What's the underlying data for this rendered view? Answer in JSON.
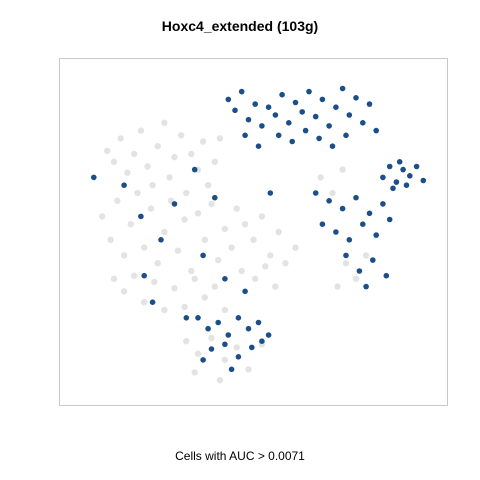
{
  "chart_data": {
    "type": "scatter",
    "title": "Hoxc4_extended (103g)",
    "caption": "Cells with AUC > 0.0071",
    "xlabel": "",
    "ylabel": "",
    "axes_visible": false,
    "grid": false,
    "colors": {
      "background_cells": "#dcdcdc",
      "active_cells": "#1c4f8a"
    },
    "series": [
      {
        "role": "background",
        "points": [
          [
            -0.82,
            0.52
          ],
          [
            -0.78,
            0.45
          ],
          [
            -0.74,
            0.6
          ],
          [
            -0.7,
            0.38
          ],
          [
            -0.66,
            0.5
          ],
          [
            -0.62,
            0.65
          ],
          [
            -0.58,
            0.42
          ],
          [
            -0.55,
            0.3
          ],
          [
            -0.52,
            0.55
          ],
          [
            -0.48,
            0.7
          ],
          [
            -0.45,
            0.35
          ],
          [
            -0.42,
            0.48
          ],
          [
            -0.38,
            0.62
          ],
          [
            -0.35,
            0.25
          ],
          [
            -0.32,
            0.5
          ],
          [
            -0.28,
            0.4
          ],
          [
            -0.25,
            0.58
          ],
          [
            -0.22,
            0.3
          ],
          [
            -0.18,
            0.45
          ],
          [
            -0.15,
            0.6
          ],
          [
            -0.85,
            0.1
          ],
          [
            -0.8,
            -0.05
          ],
          [
            -0.76,
            0.2
          ],
          [
            -0.72,
            -0.15
          ],
          [
            -0.68,
            0.05
          ],
          [
            -0.64,
            0.25
          ],
          [
            -0.6,
            -0.1
          ],
          [
            -0.56,
            0.15
          ],
          [
            -0.52,
            -0.2
          ],
          [
            -0.48,
            0.0
          ],
          [
            -0.44,
            0.2
          ],
          [
            -0.4,
            -0.12
          ],
          [
            -0.36,
            0.08
          ],
          [
            -0.32,
            -0.25
          ],
          [
            -0.28,
            0.12
          ],
          [
            -0.24,
            -0.05
          ],
          [
            -0.2,
            0.18
          ],
          [
            -0.16,
            -0.18
          ],
          [
            -0.12,
            0.02
          ],
          [
            -0.08,
            -0.1
          ],
          [
            -0.78,
            -0.3
          ],
          [
            -0.72,
            -0.38
          ],
          [
            -0.66,
            -0.28
          ],
          [
            -0.6,
            -0.45
          ],
          [
            -0.54,
            -0.32
          ],
          [
            -0.48,
            -0.5
          ],
          [
            -0.42,
            -0.36
          ],
          [
            -0.36,
            -0.48
          ],
          [
            -0.3,
            -0.3
          ],
          [
            -0.24,
            -0.42
          ],
          [
            -0.18,
            -0.35
          ],
          [
            -0.12,
            -0.5
          ],
          [
            -0.05,
            0.15
          ],
          [
            0.0,
            0.05
          ],
          [
            0.05,
            -0.05
          ],
          [
            0.1,
            0.1
          ],
          [
            0.15,
            -0.15
          ],
          [
            0.2,
            0.0
          ],
          [
            -0.02,
            -0.25
          ],
          [
            0.06,
            -0.3
          ],
          [
            0.12,
            -0.22
          ],
          [
            0.18,
            -0.35
          ],
          [
            0.24,
            -0.2
          ],
          [
            0.3,
            -0.1
          ],
          [
            -0.35,
            -0.7
          ],
          [
            -0.28,
            -0.78
          ],
          [
            -0.2,
            -0.68
          ],
          [
            -0.12,
            -0.82
          ],
          [
            -0.05,
            -0.74
          ],
          [
            0.02,
            -0.88
          ],
          [
            0.1,
            -0.72
          ],
          [
            -0.3,
            -0.9
          ],
          [
            -0.15,
            -0.95
          ],
          [
            0.45,
            0.35
          ],
          [
            0.52,
            0.25
          ],
          [
            0.58,
            0.4
          ],
          [
            0.6,
            -0.2
          ],
          [
            0.66,
            -0.3
          ],
          [
            0.72,
            -0.15
          ],
          [
            0.55,
            -0.35
          ]
        ]
      },
      {
        "role": "active",
        "points": [
          [
            -0.1,
            0.85
          ],
          [
            -0.06,
            0.78
          ],
          [
            -0.02,
            0.9
          ],
          [
            0.02,
            0.72
          ],
          [
            0.06,
            0.82
          ],
          [
            0.1,
            0.68
          ],
          [
            0.14,
            0.8
          ],
          [
            0.18,
            0.75
          ],
          [
            0.22,
            0.88
          ],
          [
            0.26,
            0.7
          ],
          [
            0.3,
            0.83
          ],
          [
            0.34,
            0.77
          ],
          [
            0.38,
            0.9
          ],
          [
            0.42,
            0.74
          ],
          [
            0.46,
            0.85
          ],
          [
            0.5,
            0.68
          ],
          [
            0.54,
            0.8
          ],
          [
            0.58,
            0.92
          ],
          [
            0.62,
            0.75
          ],
          [
            0.66,
            0.86
          ],
          [
            0.7,
            0.7
          ],
          [
            0.74,
            0.82
          ],
          [
            0.78,
            0.65
          ],
          [
            0.2,
            0.62
          ],
          [
            0.28,
            0.58
          ],
          [
            0.36,
            0.65
          ],
          [
            0.44,
            0.6
          ],
          [
            0.52,
            0.55
          ],
          [
            0.6,
            0.62
          ],
          [
            0.0,
            0.62
          ],
          [
            0.08,
            0.55
          ],
          [
            0.82,
            0.35
          ],
          [
            0.86,
            0.42
          ],
          [
            0.9,
            0.32
          ],
          [
            0.94,
            0.4
          ],
          [
            0.98,
            0.36
          ],
          [
            1.02,
            0.42
          ],
          [
            1.06,
            0.33
          ],
          [
            0.88,
            0.28
          ],
          [
            0.96,
            0.3
          ],
          [
            0.92,
            0.45
          ],
          [
            0.42,
            0.25
          ],
          [
            0.5,
            0.2
          ],
          [
            0.58,
            0.15
          ],
          [
            0.66,
            0.22
          ],
          [
            0.74,
            0.12
          ],
          [
            0.82,
            0.18
          ],
          [
            0.46,
            0.05
          ],
          [
            0.54,
            0.0
          ],
          [
            0.62,
            -0.05
          ],
          [
            0.7,
            0.05
          ],
          [
            0.78,
            -0.02
          ],
          [
            0.86,
            0.08
          ],
          [
            0.6,
            -0.15
          ],
          [
            0.68,
            -0.25
          ],
          [
            0.76,
            -0.18
          ],
          [
            0.84,
            -0.28
          ],
          [
            0.72,
            -0.35
          ],
          [
            -0.28,
            -0.55
          ],
          [
            -0.22,
            -0.62
          ],
          [
            -0.16,
            -0.58
          ],
          [
            -0.1,
            -0.66
          ],
          [
            -0.04,
            -0.55
          ],
          [
            0.02,
            -0.62
          ],
          [
            0.08,
            -0.58
          ],
          [
            0.14,
            -0.66
          ],
          [
            -0.2,
            -0.75
          ],
          [
            -0.12,
            -0.72
          ],
          [
            -0.04,
            -0.8
          ],
          [
            0.04,
            -0.74
          ],
          [
            0.1,
            -0.7
          ],
          [
            -0.25,
            -0.82
          ],
          [
            -0.08,
            -0.88
          ],
          [
            -0.9,
            0.35
          ],
          [
            -0.72,
            0.3
          ],
          [
            -0.62,
            0.1
          ],
          [
            -0.5,
            -0.05
          ],
          [
            -0.42,
            0.18
          ],
          [
            -0.3,
            0.4
          ],
          [
            -0.25,
            -0.15
          ],
          [
            -0.18,
            0.22
          ],
          [
            -0.12,
            -0.3
          ],
          [
            -0.6,
            -0.28
          ],
          [
            -0.55,
            -0.45
          ],
          [
            -0.35,
            -0.55
          ],
          [
            0.0,
            -0.38
          ],
          [
            0.15,
            0.25
          ]
        ]
      }
    ],
    "xlim": [
      -1.0,
      1.1
    ],
    "ylim": [
      -1.0,
      1.0
    ]
  }
}
